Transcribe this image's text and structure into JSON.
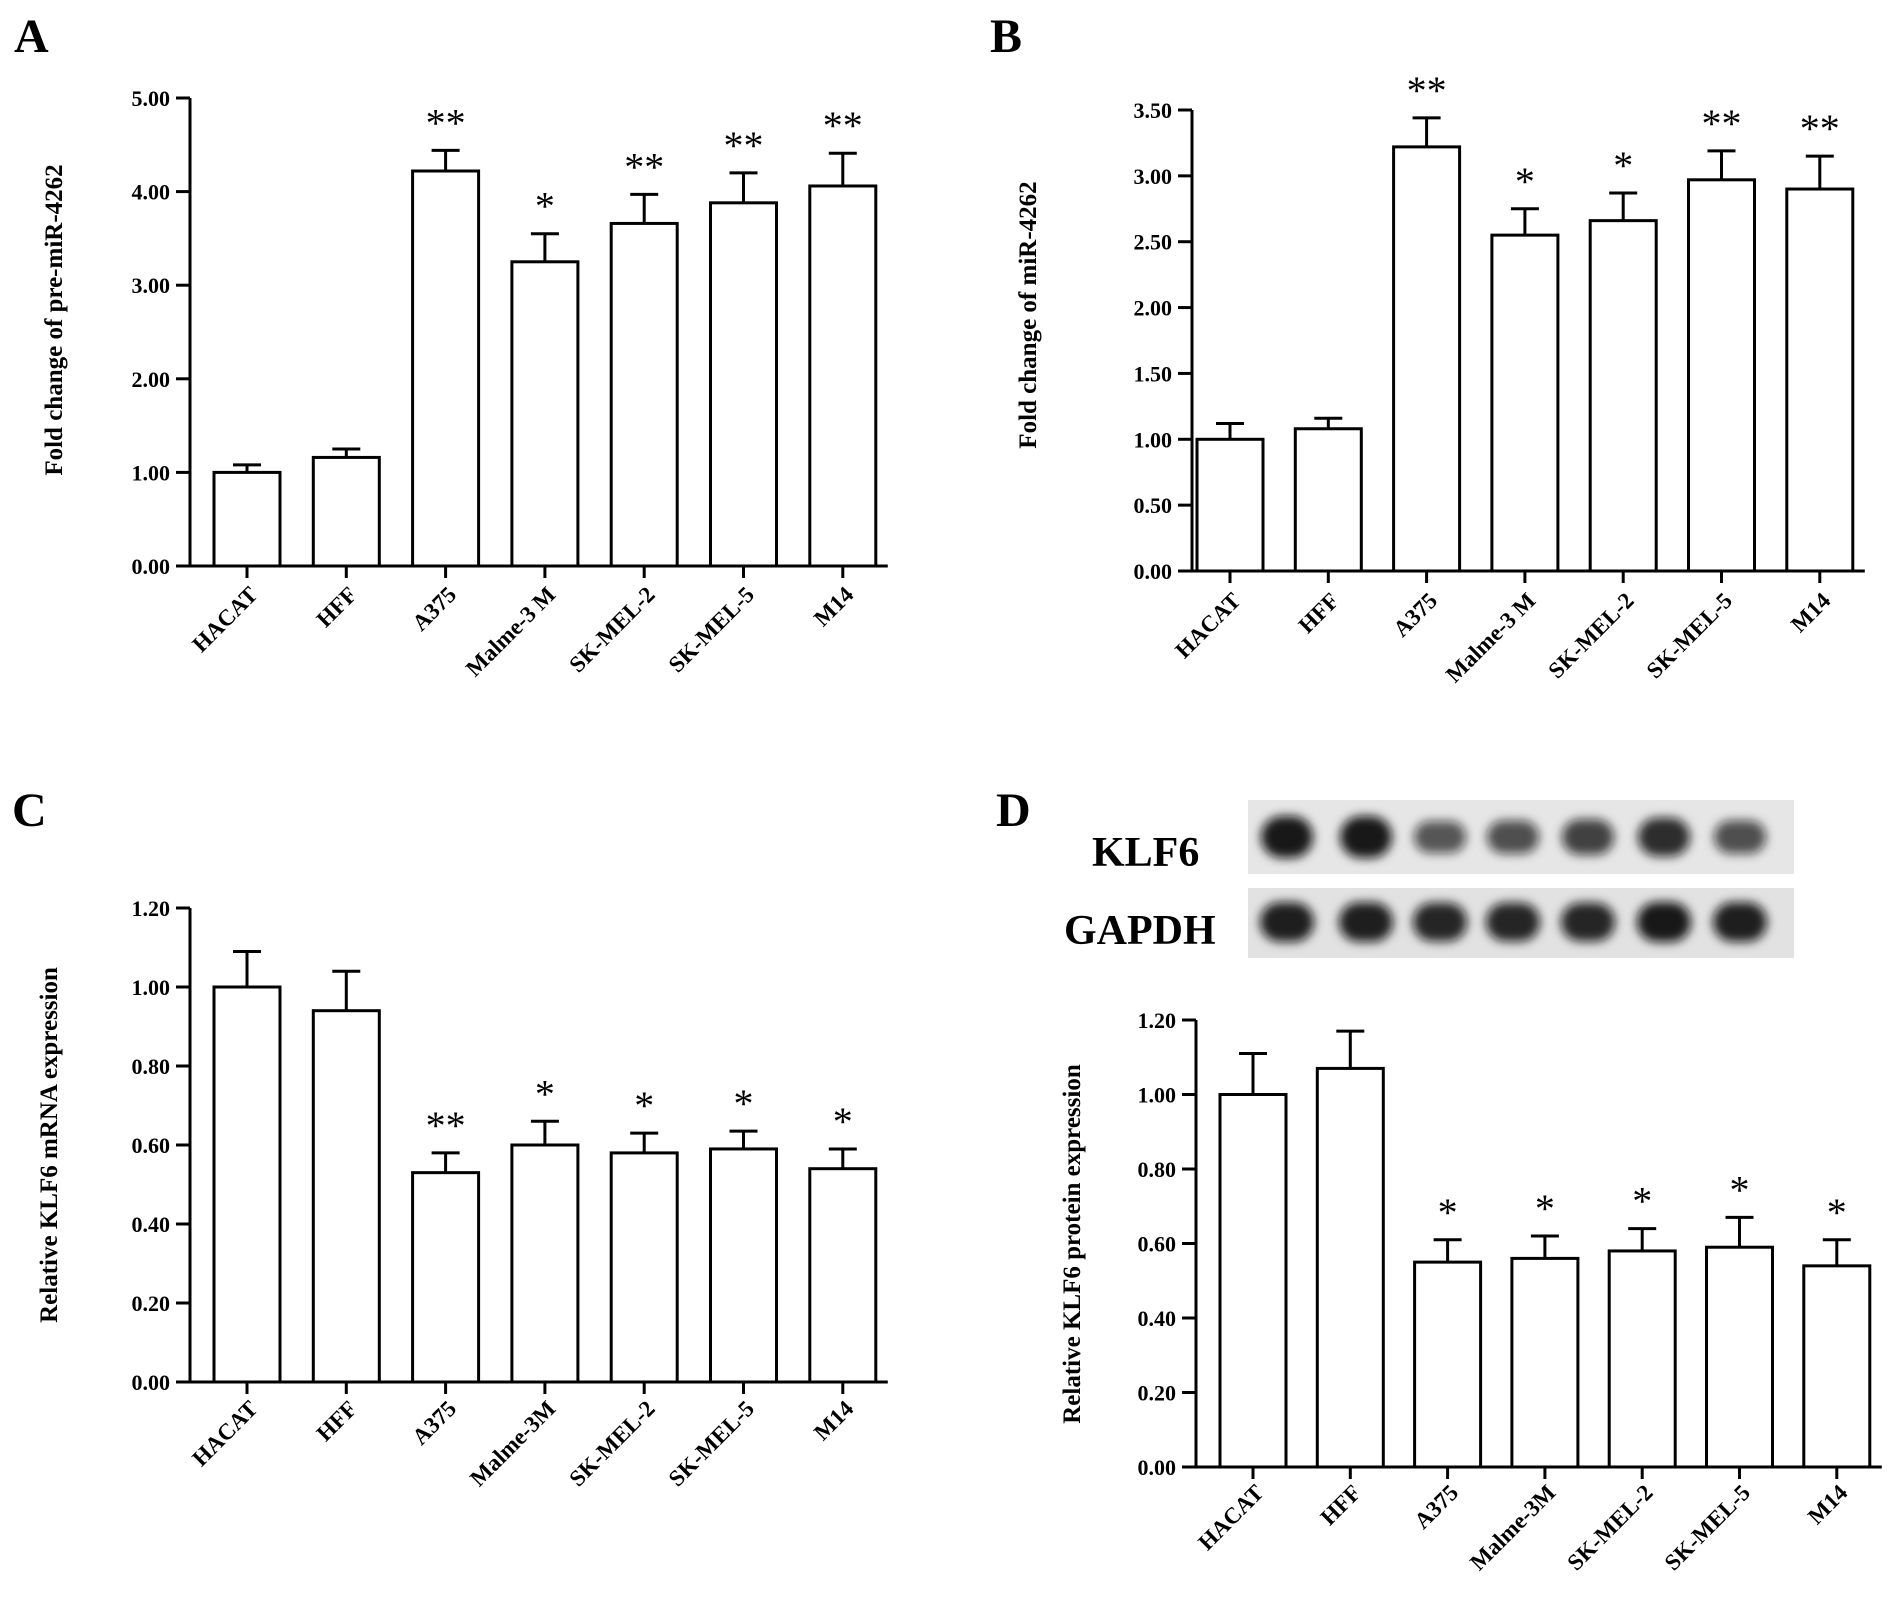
{
  "chart_data": [
    {
      "panel": "A",
      "type": "bar",
      "ylabel": "Fold change of pre-miR-4262",
      "categories": [
        "HACAT",
        "HFF",
        "A375",
        "Malme-3 M",
        "SK-MEL-2",
        "SK-MEL-5",
        "M14"
      ],
      "values": [
        1.0,
        1.16,
        4.22,
        3.25,
        3.66,
        3.88,
        4.06
      ],
      "errors": [
        0.08,
        0.09,
        0.22,
        0.3,
        0.31,
        0.32,
        0.35
      ],
      "significance": [
        "",
        "",
        "**",
        "*",
        "**",
        "**",
        "**"
      ],
      "ylim": [
        0,
        5
      ],
      "yticks": [
        "0.00",
        "1.00",
        "2.00",
        "3.00",
        "4.00",
        "5.00"
      ],
      "grid": false
    },
    {
      "panel": "B",
      "type": "bar",
      "ylabel": "Fold change of  miR-4262",
      "categories": [
        "HACAT",
        "HFF",
        "A375",
        "Malme-3 M",
        "SK-MEL-2",
        "SK-MEL-5",
        "M14"
      ],
      "values": [
        1.0,
        1.08,
        3.22,
        2.55,
        2.66,
        2.97,
        2.9
      ],
      "errors": [
        0.12,
        0.08,
        0.22,
        0.2,
        0.21,
        0.22,
        0.25
      ],
      "significance": [
        "",
        "",
        "**",
        "*",
        "*",
        "**",
        "**"
      ],
      "ylim": [
        0,
        3.5
      ],
      "yticks": [
        "0.00",
        "0.50",
        "1.00",
        "1.50",
        "2.00",
        "2.50",
        "3.00",
        "3.50"
      ],
      "grid": false
    },
    {
      "panel": "C",
      "type": "bar",
      "ylabel": "Relative  KLF6 mRNA expression",
      "categories": [
        "HACAT",
        "HFF",
        "A375",
        "Malme-3M",
        "SK-MEL-2",
        "SK-MEL-5",
        "M14"
      ],
      "values": [
        1.0,
        0.94,
        0.53,
        0.6,
        0.58,
        0.59,
        0.54
      ],
      "errors": [
        0.09,
        0.1,
        0.05,
        0.06,
        0.05,
        0.045,
        0.05
      ],
      "significance": [
        "",
        "",
        "**",
        "*",
        "*",
        "*",
        "*"
      ],
      "ylim": [
        0,
        1.2
      ],
      "yticks": [
        "0.00",
        "0.20",
        "0.40",
        "0.60",
        "0.80",
        "1.00",
        "1.20"
      ],
      "grid": false
    },
    {
      "panel": "D",
      "type": "bar",
      "ylabel": "Relative KLF6 protein expression",
      "categories": [
        "HACAT",
        "HFF",
        "A375",
        "Malme-3M",
        "SK-MEL-2",
        "SK-MEL-5",
        "M14"
      ],
      "values": [
        1.0,
        1.07,
        0.55,
        0.56,
        0.58,
        0.59,
        0.54
      ],
      "errors": [
        0.11,
        0.1,
        0.06,
        0.06,
        0.06,
        0.08,
        0.07
      ],
      "significance": [
        "",
        "",
        "*",
        "*",
        "*",
        "*",
        "*"
      ],
      "ylim": [
        0,
        1.2
      ],
      "yticks": [
        "0.00",
        "0.20",
        "0.40",
        "0.60",
        "0.80",
        "1.00",
        "1.20"
      ],
      "grid": false
    }
  ],
  "blot": {
    "labels": [
      "KLF6",
      "GAPDH"
    ],
    "klf6_intensity": [
      1.0,
      1.0,
      0.55,
      0.6,
      0.7,
      0.85,
      0.6
    ],
    "gapdh_intensity": [
      0.95,
      0.95,
      0.9,
      0.9,
      0.9,
      1.0,
      0.95
    ]
  }
}
